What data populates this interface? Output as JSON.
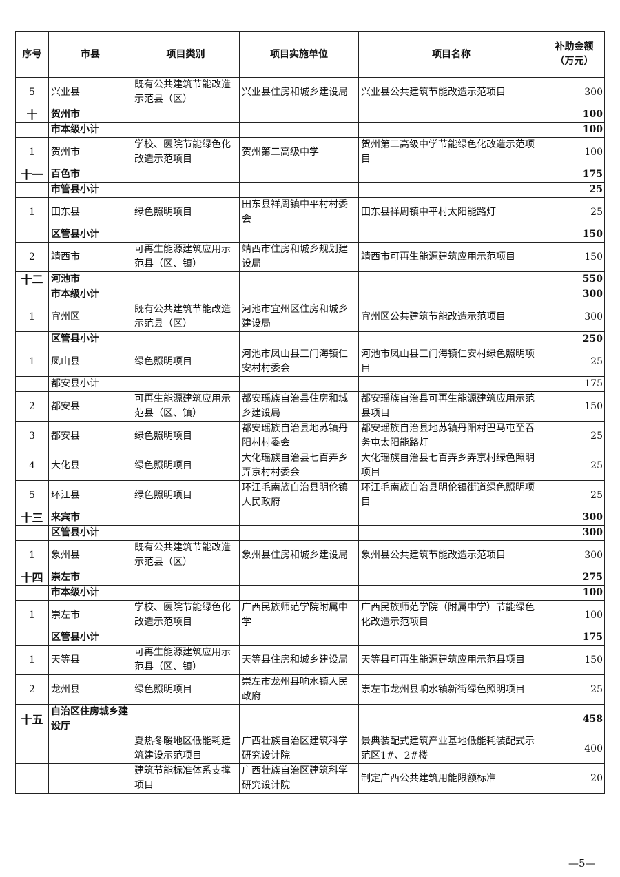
{
  "header": {
    "no": "序号",
    "county": "市县",
    "category": "项目类别",
    "unit": "项目实施单位",
    "name": "项目名称",
    "amount": "补助金额（万元）"
  },
  "rows": [
    {
      "type": "item",
      "no": "5",
      "county": "兴业县",
      "category": "既有公共建筑节能改造示范县（区）",
      "unit": "兴业县住房和城乡建设局",
      "name": "兴业县公共建筑节能改造示范项目",
      "amount": "300"
    },
    {
      "type": "section",
      "no": "十",
      "county": "贺州市",
      "category": "",
      "unit": "",
      "name": "",
      "amount": "100"
    },
    {
      "type": "subtotal",
      "no": "",
      "county": "市本级小计",
      "category": "",
      "unit": "",
      "name": "",
      "amount": "100"
    },
    {
      "type": "item",
      "no": "1",
      "county": "贺州市",
      "category": "学校、医院节能绿色化改造示范项目",
      "unit": "贺州第二高级中学",
      "name": "贺州第二高级中学节能绿色化改造示范项目",
      "amount": "100"
    },
    {
      "type": "section",
      "no": "十一",
      "county": "百色市",
      "category": "",
      "unit": "",
      "name": "",
      "amount": "175"
    },
    {
      "type": "subtotal",
      "no": "",
      "county": "市管县小计",
      "category": "",
      "unit": "",
      "name": "",
      "amount": "25"
    },
    {
      "type": "item",
      "no": "1",
      "county": "田东县",
      "category": "绿色照明项目",
      "unit": "田东县祥周镇中平村村委会",
      "name": "田东县祥周镇中平村太阳能路灯",
      "amount": "25"
    },
    {
      "type": "subtotal",
      "no": "",
      "county": "区管县小计",
      "category": "",
      "unit": "",
      "name": "",
      "amount": "150"
    },
    {
      "type": "item",
      "no": "2",
      "county": "靖西市",
      "category": "可再生能源建筑应用示范县（区、镇）",
      "unit": "靖西市住房和城乡规划建设局",
      "name": "靖西市可再生能源建筑应用示范项目",
      "amount": "150"
    },
    {
      "type": "section",
      "no": "十二",
      "county": "河池市",
      "category": "",
      "unit": "",
      "name": "",
      "amount": "550"
    },
    {
      "type": "subtotal",
      "no": "",
      "county": "市本级小计",
      "category": "",
      "unit": "",
      "name": "",
      "amount": "300"
    },
    {
      "type": "item",
      "no": "1",
      "county": "宜州区",
      "category": "既有公共建筑节能改造示范县（区）",
      "unit": "河池市宜州区住房和城乡建设局",
      "name": "宜州区公共建筑节能改造示范项目",
      "amount": "300"
    },
    {
      "type": "subtotal",
      "no": "",
      "county": "区管县小计",
      "category": "",
      "unit": "",
      "name": "",
      "amount": "250"
    },
    {
      "type": "item",
      "no": "1",
      "county": "凤山县",
      "category": "绿色照明项目",
      "unit": "河池市凤山县三门海镇仁安村村委会",
      "name": "河池市凤山县三门海镇仁安村绿色照明项目",
      "amount": "25"
    },
    {
      "type": "subtotal-plain",
      "no": "",
      "county": "都安县小计",
      "category": "",
      "unit": "",
      "name": "",
      "amount": "175"
    },
    {
      "type": "item",
      "no": "2",
      "county": "都安县",
      "category": "可再生能源建筑应用示范县（区、镇）",
      "unit": "都安瑶族自治县住房和城乡建设局",
      "name": "都安瑶族自治县可再生能源建筑应用示范县项目",
      "amount": "150"
    },
    {
      "type": "item",
      "no": "3",
      "county": "都安县",
      "category": "绿色照明项目",
      "unit": "都安瑶族自治县地苏镇丹阳村村委会",
      "name": "都安瑶族自治县地苏镇丹阳村巴马屯至吞务屯太阳能路灯",
      "amount": "25"
    },
    {
      "type": "item",
      "no": "4",
      "county": "大化县",
      "category": "绿色照明项目",
      "unit": "大化瑶族自治县七百弄乡弄京村村委会",
      "name": "大化瑶族自治县七百弄乡弄京村绿色照明项目",
      "amount": "25"
    },
    {
      "type": "item",
      "no": "5",
      "county": "环江县",
      "category": "绿色照明项目",
      "unit": "环江毛南族自治县明伦镇人民政府",
      "name": "环江毛南族自治县明伦镇街道绿色照明项目",
      "amount": "25"
    },
    {
      "type": "section",
      "no": "十三",
      "county": "来宾市",
      "category": "",
      "unit": "",
      "name": "",
      "amount": "300"
    },
    {
      "type": "subtotal",
      "no": "",
      "county": "区管县小计",
      "category": "",
      "unit": "",
      "name": "",
      "amount": "300"
    },
    {
      "type": "item",
      "no": "1",
      "county": "象州县",
      "category": "既有公共建筑节能改造示范县（区）",
      "unit": "象州县住房和城乡建设局",
      "name": "象州县公共建筑节能改造示范项目",
      "amount": "300"
    },
    {
      "type": "section",
      "no": "十四",
      "county": "崇左市",
      "category": "",
      "unit": "",
      "name": "",
      "amount": "275"
    },
    {
      "type": "subtotal",
      "no": "",
      "county": "市本级小计",
      "category": "",
      "unit": "",
      "name": "",
      "amount": "100"
    },
    {
      "type": "item",
      "no": "1",
      "county": "崇左市",
      "category": "学校、医院节能绿色化改造示范项目",
      "unit": "广西民族师范学院附属中学",
      "name": "广西民族师范学院（附属中学）节能绿色化改造示范项目",
      "amount": "100"
    },
    {
      "type": "subtotal",
      "no": "",
      "county": "区管县小计",
      "category": "",
      "unit": "",
      "name": "",
      "amount": "175"
    },
    {
      "type": "item",
      "no": "1",
      "county": "天等县",
      "category": "可再生能源建筑应用示范县（区、镇）",
      "unit": "天等县住房和城乡建设局",
      "name": "天等县可再生能源建筑应用示范县项目",
      "amount": "150"
    },
    {
      "type": "item",
      "no": "2",
      "county": "龙州县",
      "category": "绿色照明项目",
      "unit": "崇左市龙州县响水镇人民政府",
      "name": "崇左市龙州县响水镇新街绿色照明项目",
      "amount": "25"
    },
    {
      "type": "section tall",
      "no": "十五",
      "county": "自治区住房城乡建设厅",
      "category": "",
      "unit": "",
      "name": "",
      "amount": "458"
    },
    {
      "type": "item",
      "no": "",
      "county": "",
      "category": "夏热冬暖地区低能耗建筑建设示范项目",
      "unit": "广西壮族自治区建筑科学研究设计院",
      "name": "景典装配式建筑产业基地低能耗装配式示范区1#、2#楼",
      "amount": "400"
    },
    {
      "type": "item",
      "no": "",
      "county": "",
      "category": "建筑节能标准体系支撑项目",
      "unit": "广西壮族自治区建筑科学研究设计院",
      "name": "制定广西公共建筑用能限额标准",
      "amount": "20"
    }
  ],
  "footer": {
    "page_number": "—5—"
  }
}
